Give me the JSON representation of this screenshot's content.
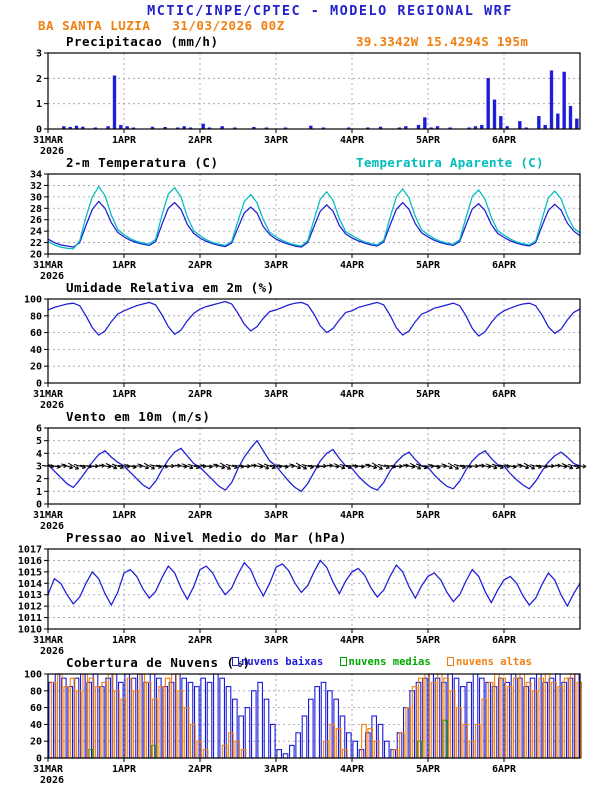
{
  "header": {
    "title": "MCTIC/INPE/CPTEC - MODELO REGIONAL WRF",
    "station": "BA SANTA LUZIA",
    "run": "31/03/2026 00Z",
    "location": "39.3342W 15.4294S 195m"
  },
  "colors": {
    "header_blue": "#2222cc",
    "orange": "#f07f10",
    "cyan": "#00bdbd",
    "blue": "#1c1cd8",
    "green": "#00a800",
    "black": "#000000"
  },
  "x_axis": {
    "tick_labels": [
      "31MAR",
      "1APR",
      "2APR",
      "3APR",
      "4APR",
      "5APR",
      "6APR"
    ],
    "tick_hours": [
      0,
      24,
      48,
      72,
      96,
      120,
      144
    ],
    "year_label": "2026",
    "hours_total": 168
  },
  "chart_data": [
    {
      "id": "precip",
      "type": "bar",
      "title": "Precipitacao (mm/h)",
      "ylim": [
        0,
        3
      ],
      "yticks": [
        0,
        1,
        2,
        3
      ],
      "x_step_hours": 2,
      "series": [
        {
          "name": "precipitacao",
          "color": "#1c1cd8",
          "fill": true,
          "values": [
            0,
            0,
            0.1,
            0.07,
            0.12,
            0.08,
            0,
            0.05,
            0,
            0.1,
            2.1,
            0.15,
            0.1,
            0.05,
            0,
            0,
            0.08,
            0,
            0.07,
            0,
            0.05,
            0.1,
            0.05,
            0,
            0.2,
            0.05,
            0,
            0.1,
            0,
            0.05,
            0,
            0,
            0.07,
            0,
            0.05,
            0,
            0,
            0.05,
            0,
            0,
            0,
            0.12,
            0,
            0.05,
            0,
            0,
            0,
            0.05,
            0,
            0,
            0.05,
            0,
            0.08,
            0,
            0,
            0.05,
            0.1,
            0,
            0.15,
            0.45,
            0.05,
            0.1,
            0,
            0.05,
            0,
            0,
            0.05,
            0.1,
            0.15,
            2.0,
            1.15,
            0.5,
            0.1,
            0,
            0.3,
            0.05,
            0,
            0.5,
            0.15,
            2.3,
            0.6,
            2.25,
            0.9,
            0.4
          ]
        }
      ]
    },
    {
      "id": "temp",
      "type": "line",
      "title": "2-m Temperatura (C)",
      "right_legend": "Temperatura Aparente (C)",
      "ylim": [
        20,
        34
      ],
      "yticks": [
        20,
        22,
        24,
        26,
        28,
        30,
        32,
        34
      ],
      "x_step_hours": 2,
      "series": [
        {
          "name": "2-m Temperatura",
          "color": "#1c1cd8",
          "values": [
            22.6,
            22.0,
            21.6,
            21.4,
            21.2,
            22.0,
            25.0,
            27.8,
            29.2,
            28.0,
            25.5,
            23.8,
            23.0,
            22.4,
            22.0,
            21.7,
            21.5,
            22.2,
            25.2,
            28.0,
            29.0,
            27.8,
            25.2,
            23.6,
            22.8,
            22.2,
            21.8,
            21.5,
            21.3,
            21.9,
            24.6,
            27.2,
            28.2,
            27.2,
            24.8,
            23.4,
            22.6,
            22.1,
            21.7,
            21.4,
            21.2,
            22.0,
            24.8,
            27.5,
            28.6,
            27.5,
            25.0,
            23.5,
            22.8,
            22.3,
            21.9,
            21.6,
            21.4,
            22.1,
            25.0,
            27.8,
            29.0,
            27.8,
            25.3,
            23.7,
            23.0,
            22.4,
            22.0,
            21.7,
            21.5,
            22.2,
            25.1,
            27.9,
            28.8,
            27.6,
            25.2,
            23.6,
            22.9,
            22.3,
            21.9,
            21.6,
            21.4,
            22.0,
            24.9,
            27.6,
            28.7,
            27.7,
            25.4,
            24.0,
            23.2
          ]
        },
        {
          "name": "Temperatura Aparente",
          "color": "#00bdbd",
          "values": [
            22.2,
            21.6,
            21.2,
            21.0,
            20.9,
            22.3,
            26.5,
            30.0,
            31.8,
            30.2,
            26.8,
            24.3,
            23.4,
            22.7,
            22.2,
            21.9,
            21.7,
            22.6,
            26.8,
            30.5,
            31.6,
            30.0,
            26.5,
            24.1,
            23.2,
            22.5,
            22.0,
            21.7,
            21.5,
            22.2,
            25.8,
            29.2,
            30.4,
            29.0,
            26.0,
            23.8,
            23.0,
            22.4,
            21.9,
            21.6,
            21.4,
            22.3,
            26.0,
            29.6,
            30.9,
            29.4,
            26.2,
            23.9,
            23.2,
            22.6,
            22.1,
            21.8,
            21.6,
            22.4,
            26.3,
            30.0,
            31.4,
            29.8,
            26.6,
            24.2,
            23.4,
            22.7,
            22.2,
            21.9,
            21.7,
            22.5,
            26.4,
            30.1,
            31.2,
            29.6,
            26.4,
            24.1,
            23.3,
            22.6,
            22.1,
            21.8,
            21.6,
            22.3,
            26.1,
            29.8,
            31.0,
            29.7,
            26.7,
            24.5,
            23.7
          ]
        }
      ]
    },
    {
      "id": "humidity",
      "type": "line",
      "title": "Umidade Relativa em 2m (%)",
      "ylim": [
        0,
        100
      ],
      "yticks": [
        0,
        20,
        40,
        60,
        80,
        100
      ],
      "x_step_hours": 2,
      "series": [
        {
          "name": "umidade relativa",
          "color": "#1c1cd8",
          "values": [
            87,
            90,
            92,
            94,
            95,
            92,
            80,
            66,
            57,
            62,
            73,
            82,
            86,
            89,
            92,
            94,
            96,
            93,
            81,
            67,
            58,
            63,
            74,
            83,
            88,
            91,
            93,
            95,
            97,
            94,
            83,
            70,
            62,
            67,
            77,
            85,
            87,
            90,
            93,
            95,
            96,
            93,
            82,
            68,
            60,
            65,
            75,
            84,
            86,
            90,
            92,
            94,
            96,
            93,
            81,
            66,
            57,
            62,
            73,
            82,
            85,
            89,
            91,
            93,
            95,
            92,
            80,
            65,
            56,
            61,
            72,
            81,
            86,
            89,
            92,
            94,
            95,
            92,
            81,
            67,
            59,
            64,
            75,
            84,
            88
          ]
        }
      ]
    },
    {
      "id": "wind",
      "type": "line",
      "title": "Vento em 10m (m/s)",
      "ylim": [
        0,
        6
      ],
      "yticks": [
        0,
        1,
        2,
        3,
        4,
        5,
        6
      ],
      "x_step_hours": 2,
      "series": [
        {
          "name": "velocidade do vento",
          "color": "#1c1cd8",
          "values": [
            3.1,
            2.6,
            2.1,
            1.6,
            1.3,
            1.9,
            2.6,
            3.3,
            3.9,
            4.2,
            3.7,
            3.3,
            3.0,
            2.5,
            2.0,
            1.5,
            1.2,
            1.8,
            2.7,
            3.5,
            4.1,
            4.4,
            3.8,
            3.2,
            2.9,
            2.4,
            1.9,
            1.4,
            1.1,
            1.7,
            2.8,
            3.7,
            4.4,
            5.0,
            4.2,
            3.4,
            3.0,
            2.4,
            1.8,
            1.3,
            1.0,
            1.6,
            2.5,
            3.4,
            4.0,
            4.3,
            3.6,
            3.0,
            2.8,
            2.2,
            1.7,
            1.3,
            1.1,
            1.7,
            2.6,
            3.3,
            3.8,
            4.1,
            3.5,
            3.0,
            2.9,
            2.3,
            1.8,
            1.4,
            1.2,
            1.8,
            2.7,
            3.4,
            3.9,
            4.2,
            3.6,
            3.1,
            3.0,
            2.4,
            1.9,
            1.5,
            1.2,
            1.8,
            2.6,
            3.3,
            3.8,
            4.1,
            3.7,
            3.2,
            3.0
          ]
        }
      ],
      "barbs": {
        "y": 3.0,
        "color": "#000000",
        "directions": [
          95,
          102,
          88,
          110,
          120,
          105,
          98,
          92,
          85,
          100,
          115,
          108,
          96,
          104,
          90,
          112,
          118,
          103,
          97,
          90,
          86,
          99,
          113,
          107,
          94,
          101,
          87,
          109,
          121,
          106,
          99,
          93,
          84,
          101,
          116,
          109,
          97,
          103,
          89,
          111,
          119,
          104,
          96,
          91,
          83,
          98,
          114,
          106,
          95,
          100,
          86,
          108,
          122,
          107,
          100,
          94,
          85,
          102,
          117,
          110,
          93,
          105,
          91,
          113,
          120,
          105,
          98,
          92,
          87,
          100,
          112,
          108,
          96,
          102,
          88,
          110,
          118,
          103,
          97,
          90,
          84,
          99,
          115,
          107,
          95
        ]
      }
    },
    {
      "id": "pressure",
      "type": "line",
      "title": "Pressao ao Nivel Medio do Mar (hPa)",
      "ylim": [
        1010,
        1017
      ],
      "yticks": [
        1010,
        1011,
        1012,
        1013,
        1014,
        1015,
        1016,
        1017
      ],
      "x_step_hours": 2,
      "series": [
        {
          "name": "pressao nivel do mar",
          "color": "#1c1cd8",
          "values": [
            1013.0,
            1014.4,
            1014.0,
            1013.0,
            1012.2,
            1012.8,
            1014.0,
            1015.0,
            1014.4,
            1013.1,
            1012.1,
            1013.2,
            1014.9,
            1015.2,
            1014.6,
            1013.5,
            1012.7,
            1013.3,
            1014.5,
            1015.5,
            1014.9,
            1013.6,
            1012.6,
            1013.7,
            1015.2,
            1015.5,
            1014.9,
            1013.8,
            1013.0,
            1013.6,
            1014.8,
            1015.8,
            1015.2,
            1013.9,
            1012.9,
            1014.0,
            1015.4,
            1015.7,
            1015.1,
            1014.0,
            1013.2,
            1013.8,
            1015.0,
            1016.0,
            1015.4,
            1014.1,
            1013.1,
            1014.2,
            1015.0,
            1015.3,
            1014.7,
            1013.6,
            1012.8,
            1013.4,
            1014.6,
            1015.6,
            1015.0,
            1013.7,
            1012.7,
            1013.8,
            1014.6,
            1014.9,
            1014.3,
            1013.2,
            1012.4,
            1013.0,
            1014.2,
            1015.2,
            1014.6,
            1013.3,
            1012.3,
            1013.4,
            1014.3,
            1014.6,
            1014.0,
            1012.9,
            1012.1,
            1012.7,
            1013.9,
            1014.9,
            1014.3,
            1013.0,
            1012.0,
            1013.1,
            1014.0
          ]
        }
      ]
    },
    {
      "id": "clouds",
      "type": "bar",
      "title": "Cobertura de Nuvens (%)",
      "ylim": [
        0,
        100
      ],
      "yticks": [
        0,
        20,
        40,
        60,
        80,
        100
      ],
      "x_step_hours": 2,
      "legend": [
        {
          "label": "nuvens baixas",
          "color": "#1c1cd8"
        },
        {
          "label": "nuvens medias",
          "color": "#00a800"
        },
        {
          "label": "nuvens altas",
          "color": "#f07f10"
        }
      ],
      "series": [
        {
          "name": "nuvens baixas",
          "color": "#1c1cd8",
          "fill": false,
          "values": [
            90,
            100,
            95,
            85,
            95,
            100,
            90,
            100,
            85,
            95,
            100,
            90,
            100,
            95,
            100,
            90,
            100,
            95,
            85,
            90,
            100,
            95,
            90,
            85,
            95,
            90,
            100,
            95,
            85,
            70,
            50,
            60,
            80,
            90,
            70,
            40,
            10,
            5,
            15,
            30,
            50,
            70,
            85,
            90,
            80,
            70,
            50,
            30,
            20,
            10,
            30,
            50,
            40,
            20,
            10,
            30,
            60,
            80,
            90,
            95,
            100,
            95,
            90,
            100,
            95,
            85,
            90,
            100,
            95,
            90,
            85,
            95,
            90,
            100,
            95,
            85,
            95,
            100,
            90,
            95,
            100,
            90,
            95,
            100
          ]
        },
        {
          "name": "nuvens medias",
          "color": "#00a800",
          "fill": false,
          "values": [
            0,
            0,
            0,
            0,
            0,
            0,
            10,
            0,
            0,
            0,
            0,
            0,
            0,
            0,
            0,
            0,
            15,
            0,
            0,
            0,
            0,
            0,
            0,
            0,
            0,
            0,
            0,
            0,
            0,
            0,
            0,
            0,
            0,
            0,
            0,
            0,
            0,
            0,
            0,
            0,
            0,
            0,
            0,
            0,
            0,
            0,
            0,
            0,
            0,
            0,
            0,
            0,
            0,
            0,
            0,
            0,
            0,
            0,
            20,
            0,
            0,
            0,
            45,
            0,
            0,
            0,
            0,
            0,
            0,
            0,
            0,
            0,
            0,
            0,
            0,
            0,
            0,
            0,
            0,
            0,
            0,
            0,
            0,
            0
          ]
        },
        {
          "name": "nuvens altas",
          "color": "#f07f10",
          "fill": false,
          "values": [
            90,
            100,
            85,
            95,
            80,
            100,
            95,
            85,
            90,
            100,
            80,
            70,
            95,
            80,
            100,
            90,
            70,
            85,
            95,
            100,
            80,
            60,
            40,
            20,
            10,
            0,
            0,
            15,
            30,
            20,
            10,
            0,
            0,
            0,
            0,
            0,
            0,
            0,
            0,
            0,
            0,
            0,
            0,
            20,
            40,
            35,
            10,
            0,
            0,
            40,
            35,
            20,
            0,
            0,
            10,
            30,
            60,
            85,
            95,
            100,
            90,
            100,
            95,
            80,
            60,
            40,
            20,
            40,
            70,
            90,
            100,
            95,
            85,
            95,
            100,
            90,
            80,
            95,
            100,
            90,
            85,
            95,
            100,
            90
          ]
        }
      ]
    }
  ]
}
